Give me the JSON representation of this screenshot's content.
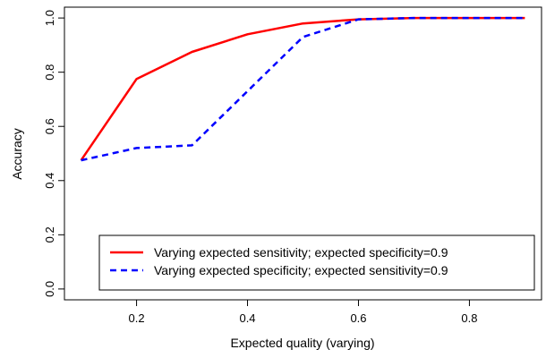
{
  "chart_data": {
    "type": "line",
    "xlabel": "Expected quality (varying)",
    "ylabel": "Accuracy",
    "xlim": [
      0.07,
      0.93
    ],
    "ylim": [
      -0.04,
      1.04
    ],
    "x_ticks": [
      "0.2",
      "0.4",
      "0.6",
      "0.8"
    ],
    "y_ticks": [
      "0.0",
      "0.2",
      "0.4",
      "0.6",
      "0.8",
      "1.0"
    ],
    "grid": false,
    "legend_position": "bottom-right",
    "x": [
      0.1,
      0.2,
      0.3,
      0.4,
      0.5,
      0.6,
      0.7,
      0.8,
      0.9
    ],
    "series": [
      {
        "name": "Varying expected sensitivity; expected specificity=0.9",
        "values": [
          0.475,
          0.775,
          0.875,
          0.94,
          0.98,
          0.995,
          1.0,
          1.0,
          1.0
        ],
        "color": "#ff0000",
        "style": "solid"
      },
      {
        "name": "Varying expected specificity; expected sensitivity=0.9",
        "values": [
          0.475,
          0.52,
          0.53,
          0.73,
          0.93,
          0.995,
          1.0,
          1.0,
          1.0
        ],
        "color": "#0000ff",
        "style": "dashed"
      }
    ]
  }
}
